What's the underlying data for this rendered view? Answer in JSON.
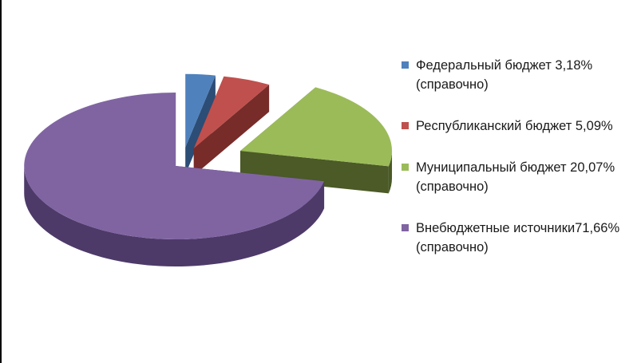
{
  "chart_data": {
    "type": "pie",
    "style": "3d-exploded",
    "legend_position": "right",
    "slices": [
      {
        "label": "Федеральный бюджет 3,18% (справочно)",
        "value": 3.18,
        "color": "#4F81BD",
        "side_color": "#2C4D75"
      },
      {
        "label": "Республиканский бюджет 5,09%",
        "value": 5.09,
        "color": "#C0504D",
        "side_color": "#772C2A"
      },
      {
        "label": "Муниципальный бюджет 20,07%(справочно)",
        "value": 20.07,
        "color": "#9BBB59",
        "side_color": "#4B5A26"
      },
      {
        "label": "Внебюджетные источники71,66%(справочно)",
        "value": 71.66,
        "color": "#8064A2",
        "side_color": "#4D3A69"
      }
    ]
  }
}
